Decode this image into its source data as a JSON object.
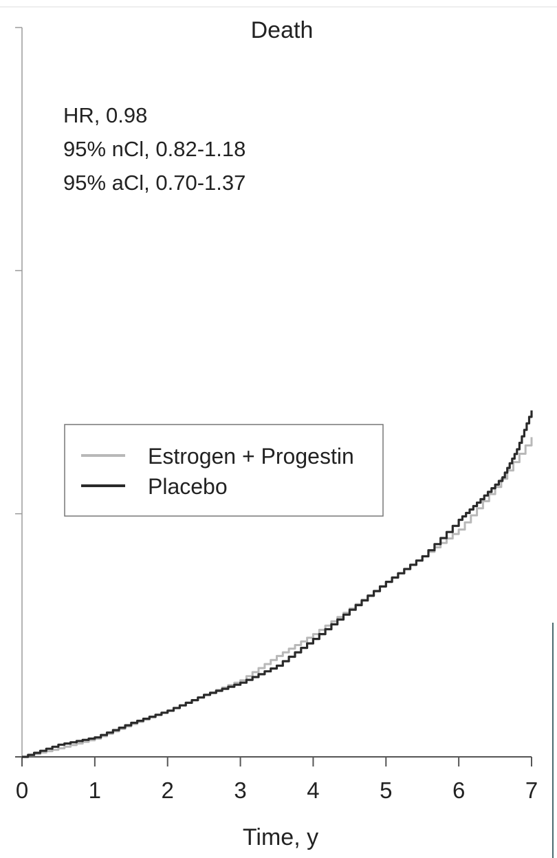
{
  "chart_data": {
    "type": "line",
    "title": "Death",
    "xlabel": "Time, y",
    "ylabel": "",
    "xlim": [
      0,
      7
    ],
    "ylim": [
      0,
      0.06
    ],
    "yticks": [
      0,
      0.02,
      0.04,
      0.06
    ],
    "xticks": [
      "0",
      "1",
      "2",
      "3",
      "4",
      "5",
      "6",
      "7"
    ],
    "grid": false,
    "legend_position": "middle-left",
    "annotations": [
      "HR, 0.98",
      "95% nCl, 0.82-1.18",
      "95% aCl, 0.70-1.37"
    ],
    "series": [
      {
        "name": "Estrogen + Progestin",
        "color": "#b8b8b8",
        "x": [
          0,
          0.5,
          1,
          1.5,
          2,
          2.5,
          3,
          3.5,
          4,
          4.5,
          5,
          5.5,
          6,
          6.5,
          7
        ],
        "y": [
          0,
          0.0007,
          0.0015,
          0.0027,
          0.0038,
          0.0051,
          0.0063,
          0.0083,
          0.0101,
          0.0122,
          0.0144,
          0.0165,
          0.0187,
          0.0222,
          0.0263
        ]
      },
      {
        "name": "Placebo",
        "color": "#2a2a2a",
        "x": [
          0,
          0.5,
          1,
          1.5,
          2,
          2.5,
          3,
          3.5,
          4,
          4.5,
          5,
          5.5,
          6,
          6.3,
          6.6,
          6.8,
          7
        ],
        "y": [
          0,
          0.001,
          0.0016,
          0.0028,
          0.0038,
          0.0051,
          0.0061,
          0.0075,
          0.0097,
          0.0121,
          0.0144,
          0.0165,
          0.0195,
          0.0212,
          0.023,
          0.0253,
          0.0285
        ]
      }
    ]
  }
}
